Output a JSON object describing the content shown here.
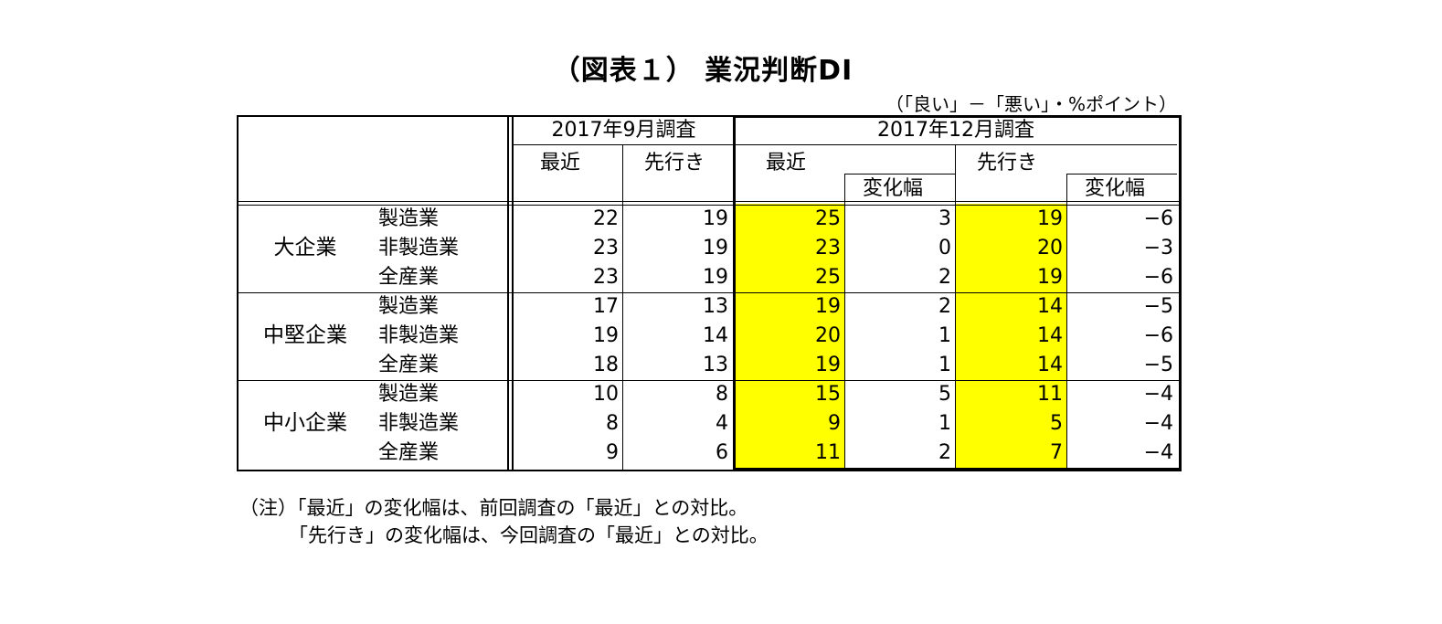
{
  "title": "（図表１） 業況判断DI",
  "unit": "（「良い」－「悪い」・%ポイント）",
  "headers": {
    "sep_survey": "2017年9月調査",
    "dec_survey": "2017年12月調査",
    "recent": "最近",
    "outlook": "先行き",
    "change": "変化幅"
  },
  "groups": [
    {
      "name": "大企業",
      "rows": [
        {
          "industry": "製造業",
          "sep_recent": "22",
          "sep_outlook": "19",
          "dec_recent": "25",
          "dec_recent_change": "3",
          "dec_outlook": "19",
          "dec_outlook_change": "−6"
        },
        {
          "industry": "非製造業",
          "sep_recent": "23",
          "sep_outlook": "19",
          "dec_recent": "23",
          "dec_recent_change": "0",
          "dec_outlook": "20",
          "dec_outlook_change": "−3"
        },
        {
          "industry": "全産業",
          "sep_recent": "23",
          "sep_outlook": "19",
          "dec_recent": "25",
          "dec_recent_change": "2",
          "dec_outlook": "19",
          "dec_outlook_change": "−6"
        }
      ]
    },
    {
      "name": "中堅企業",
      "rows": [
        {
          "industry": "製造業",
          "sep_recent": "17",
          "sep_outlook": "13",
          "dec_recent": "19",
          "dec_recent_change": "2",
          "dec_outlook": "14",
          "dec_outlook_change": "−5"
        },
        {
          "industry": "非製造業",
          "sep_recent": "19",
          "sep_outlook": "14",
          "dec_recent": "20",
          "dec_recent_change": "1",
          "dec_outlook": "14",
          "dec_outlook_change": "−6"
        },
        {
          "industry": "全産業",
          "sep_recent": "18",
          "sep_outlook": "13",
          "dec_recent": "19",
          "dec_recent_change": "1",
          "dec_outlook": "14",
          "dec_outlook_change": "−5"
        }
      ]
    },
    {
      "name": "中小企業",
      "rows": [
        {
          "industry": "製造業",
          "sep_recent": "10",
          "sep_outlook": "8",
          "dec_recent": "15",
          "dec_recent_change": "5",
          "dec_outlook": "11",
          "dec_outlook_change": "−4"
        },
        {
          "industry": "非製造業",
          "sep_recent": "8",
          "sep_outlook": "4",
          "dec_recent": "9",
          "dec_recent_change": "1",
          "dec_outlook": "5",
          "dec_outlook_change": "−4"
        },
        {
          "industry": "全産業",
          "sep_recent": "9",
          "sep_outlook": "6",
          "dec_recent": "11",
          "dec_recent_change": "2",
          "dec_outlook": "7",
          "dec_outlook_change": "−4"
        }
      ]
    }
  ],
  "notes": {
    "line1": "（注）「最近」の変化幅は、前回調査の「最近」との対比。",
    "line2": "「先行き」の変化幅は、今回調査の「最近」との対比。"
  },
  "highlight_color": "#ffff00"
}
